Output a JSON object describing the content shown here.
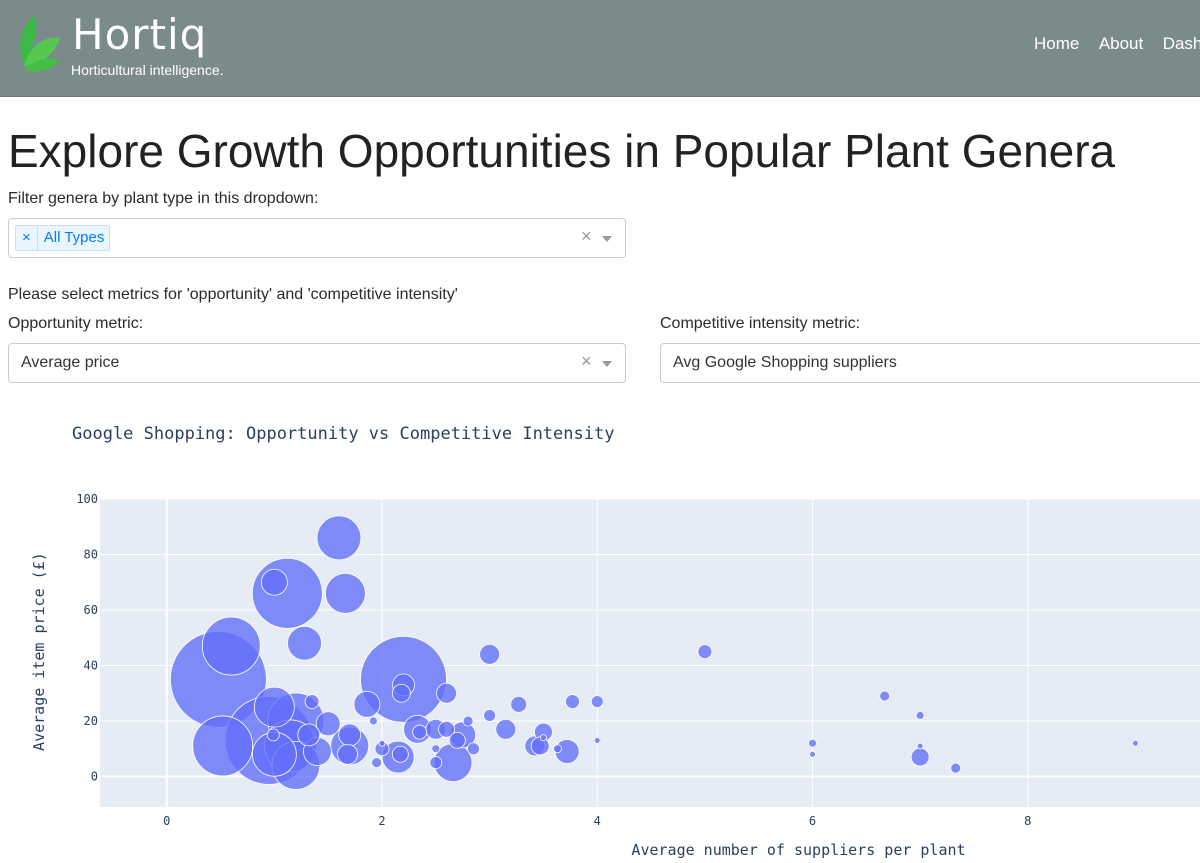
{
  "navbar": {
    "brand": "Hortiq",
    "tagline": "Horticultural intelligence.",
    "links": [
      "Home",
      "About",
      "Dash"
    ]
  },
  "page": {
    "title": "Explore Growth Opportunities in Popular Plant Genera",
    "filter_label": "Filter genera by plant type in this dropdown:",
    "filter_tag": "All Types",
    "metrics_prompt": "Please select metrics for 'opportunity' and 'competitive intensity'",
    "opportunity_label": "Opportunity metric:",
    "opportunity_value": "Average price",
    "competitive_label": "Competitive intensity metric:",
    "competitive_value": "Avg Google Shopping suppliers",
    "clear_glyph": "×"
  },
  "colors": {
    "nav_bg": "#7b8a8b",
    "plot_bg": "#e5ecf6",
    "marker": "#636efa",
    "tag_text": "#007eff"
  },
  "chart_data": {
    "type": "scatter",
    "title": "Google Shopping: Opportunity vs Competitive Intensity",
    "xlabel": "Average number of suppliers per plant",
    "ylabel": "Average item price (£)",
    "xlim": [
      -0.62,
      9.6
    ],
    "ylim": [
      -11,
      100
    ],
    "xticks": [
      0,
      2,
      4,
      6,
      8
    ],
    "yticks": [
      0,
      20,
      40,
      60,
      80,
      100
    ],
    "grid": true,
    "points": [
      {
        "x": 0.48,
        "y": 35,
        "s": 48
      },
      {
        "x": 0.95,
        "y": 13,
        "s": 44
      },
      {
        "x": 2.2,
        "y": 35,
        "s": 43
      },
      {
        "x": 1.12,
        "y": 66,
        "s": 35
      },
      {
        "x": 0.52,
        "y": 11,
        "s": 30
      },
      {
        "x": 0.6,
        "y": 47,
        "s": 29
      },
      {
        "x": 1.2,
        "y": 20,
        "s": 28
      },
      {
        "x": 1.15,
        "y": 11,
        "s": 26
      },
      {
        "x": 1.2,
        "y": 4,
        "s": 24
      },
      {
        "x": 1.0,
        "y": 8,
        "s": 22
      },
      {
        "x": 1.6,
        "y": 86,
        "s": 22
      },
      {
        "x": 1.0,
        "y": 25,
        "s": 20
      },
      {
        "x": 1.66,
        "y": 66,
        "s": 20
      },
      {
        "x": 2.66,
        "y": 5,
        "s": 19
      },
      {
        "x": 1.7,
        "y": 11,
        "s": 19
      },
      {
        "x": 1.28,
        "y": 48,
        "s": 17
      },
      {
        "x": 2.15,
        "y": 7,
        "s": 16
      },
      {
        "x": 2.33,
        "y": 17,
        "s": 14
      },
      {
        "x": 1.4,
        "y": 9,
        "s": 14
      },
      {
        "x": 1.0,
        "y": 70,
        "s": 13
      },
      {
        "x": 1.86,
        "y": 26,
        "s": 13
      },
      {
        "x": 2.75,
        "y": 15,
        "s": 13
      },
      {
        "x": 1.5,
        "y": 19,
        "s": 12
      },
      {
        "x": 3.72,
        "y": 9,
        "s": 12
      },
      {
        "x": 1.32,
        "y": 15,
        "s": 11
      },
      {
        "x": 1.7,
        "y": 15,
        "s": 11
      },
      {
        "x": 2.2,
        "y": 33,
        "s": 11
      },
      {
        "x": 3.15,
        "y": 17,
        "s": 10
      },
      {
        "x": 3.42,
        "y": 11,
        "s": 10
      },
      {
        "x": 1.68,
        "y": 8,
        "s": 10
      },
      {
        "x": 2.5,
        "y": 17,
        "s": 10
      },
      {
        "x": 2.6,
        "y": 30,
        "s": 10
      },
      {
        "x": 3.0,
        "y": 44,
        "s": 10
      },
      {
        "x": 2.18,
        "y": 30,
        "s": 9
      },
      {
        "x": 3.5,
        "y": 16,
        "s": 9
      },
      {
        "x": 3.47,
        "y": 11,
        "s": 9
      },
      {
        "x": 2.6,
        "y": 17,
        "s": 8
      },
      {
        "x": 2.17,
        "y": 8,
        "s": 8
      },
      {
        "x": 7.0,
        "y": 7,
        "s": 9
      },
      {
        "x": 3.27,
        "y": 26,
        "s": 8
      },
      {
        "x": 2.7,
        "y": 13,
        "s": 8
      },
      {
        "x": 2.35,
        "y": 16,
        "s": 7
      },
      {
        "x": 1.35,
        "y": 27,
        "s": 7
      },
      {
        "x": 2.0,
        "y": 10,
        "s": 7
      },
      {
        "x": 3.77,
        "y": 27,
        "s": 7
      },
      {
        "x": 5.0,
        "y": 45,
        "s": 7
      },
      {
        "x": 2.5,
        "y": 5,
        "s": 6
      },
      {
        "x": 0.99,
        "y": 15,
        "s": 6
      },
      {
        "x": 2.85,
        "y": 10,
        "s": 6
      },
      {
        "x": 4.0,
        "y": 27,
        "s": 6
      },
      {
        "x": 3.0,
        "y": 22,
        "s": 6
      },
      {
        "x": 7.33,
        "y": 3,
        "s": 5
      },
      {
        "x": 6.67,
        "y": 29,
        "s": 5
      },
      {
        "x": 2.8,
        "y": 20,
        "s": 5
      },
      {
        "x": 1.95,
        "y": 5,
        "s": 5
      },
      {
        "x": 1.92,
        "y": 20,
        "s": 4
      },
      {
        "x": 3.63,
        "y": 10,
        "s": 4
      },
      {
        "x": 6.0,
        "y": 12,
        "s": 4
      },
      {
        "x": 7.0,
        "y": 22,
        "s": 4
      },
      {
        "x": 2.5,
        "y": 10,
        "s": 4
      },
      {
        "x": 2.0,
        "y": 12,
        "s": 3
      },
      {
        "x": 3.5,
        "y": 14,
        "s": 3
      },
      {
        "x": 4.0,
        "y": 13,
        "s": 3
      },
      {
        "x": 6.0,
        "y": 8,
        "s": 3
      },
      {
        "x": 7.0,
        "y": 11,
        "s": 3
      },
      {
        "x": 9.0,
        "y": 12,
        "s": 3
      }
    ]
  }
}
